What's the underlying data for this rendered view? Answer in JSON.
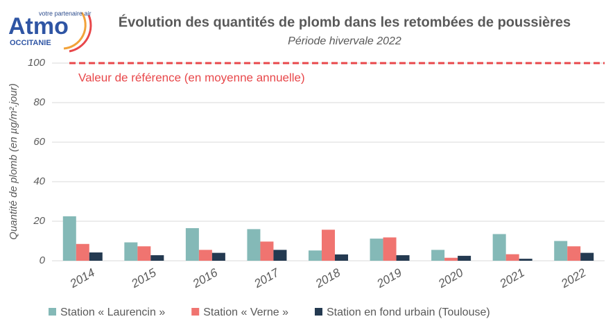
{
  "logo": {
    "name": "Atmo",
    "region": "OCCITANIE",
    "tagline": "votre partenaire air"
  },
  "chart_data": {
    "type": "bar",
    "title": "Évolution des quantités de plomb dans les retombées de poussières",
    "subtitle": "Période hivervale 2022",
    "y_label": "Quantité de plomb (en µg/m².jour)",
    "categories": [
      "2014",
      "2015",
      "2016",
      "2017",
      "2018",
      "2019",
      "2020",
      "2021",
      "2022"
    ],
    "series": [
      {
        "name": "Station « Laurencin »",
        "color": "#84b9b7",
        "values": [
          22.5,
          9.3,
          16.5,
          16,
          5.2,
          11.2,
          5.5,
          13.5,
          10
        ]
      },
      {
        "name": "Station « Verne »",
        "color": "#f07470",
        "values": [
          8.5,
          7.3,
          5.5,
          9.7,
          15.7,
          11.8,
          1.5,
          3.3,
          7.3
        ]
      },
      {
        "name": "Station en fond urbain (Toulouse)",
        "color": "#243a51",
        "values": [
          4.2,
          2.8,
          4,
          5.5,
          3.2,
          2.8,
          2.5,
          1,
          4
        ]
      }
    ],
    "reference_line": {
      "value": 100,
      "label": "Valeur de référence (en moyenne annuelle)",
      "color": "#e8474a"
    },
    "ylim": [
      0,
      100
    ],
    "yticks": [
      0,
      20,
      40,
      60,
      80,
      100
    ],
    "grid": true,
    "legend": "bottom"
  }
}
